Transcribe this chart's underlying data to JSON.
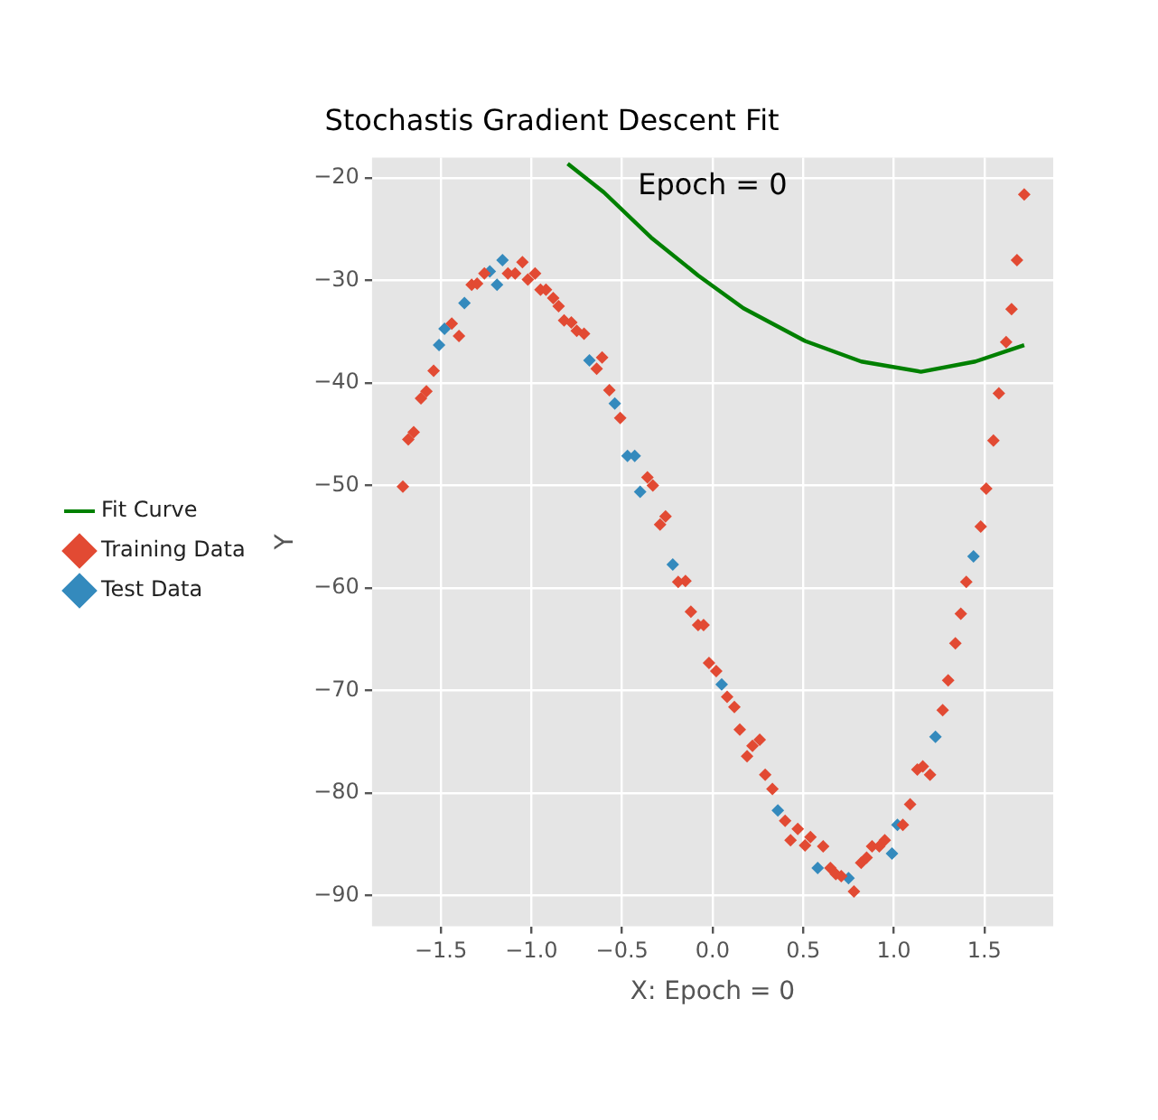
{
  "chart_data": {
    "type": "scatter",
    "title": "Stochastis Gradient Descent Fit",
    "xlabel": "X: Epoch = 0",
    "ylabel": "Y",
    "annotations": [
      "Epoch = 0"
    ],
    "xlim": [
      -1.88,
      1.88
    ],
    "ylim": [
      -93,
      -18
    ],
    "xticks": [
      {
        "value": -1.5,
        "label": "−1.5"
      },
      {
        "value": -1,
        "label": "−1.0"
      },
      {
        "value": -0.5,
        "label": "−0.5"
      },
      {
        "value": 0,
        "label": "0.0"
      },
      {
        "value": 0.5,
        "label": "0.5"
      },
      {
        "value": 1,
        "label": "1.0"
      },
      {
        "value": 1.5,
        "label": "1.5"
      }
    ],
    "yticks": [
      {
        "value": -90,
        "label": "−90"
      },
      {
        "value": -80,
        "label": "−80"
      },
      {
        "value": -70,
        "label": "−70"
      },
      {
        "value": -60,
        "label": "−60"
      },
      {
        "value": -50,
        "label": "−50"
      },
      {
        "value": -40,
        "label": "−40"
      },
      {
        "value": -30,
        "label": "−30"
      },
      {
        "value": -20,
        "label": "−20"
      }
    ],
    "grid": true,
    "legend": "left",
    "marker": "diamond",
    "series": [
      {
        "name": "Fit Curve",
        "type": "line",
        "color": "#008000",
        "marker": "none",
        "x": [
          -0.8,
          -0.6,
          -0.34,
          -0.08,
          0.17,
          0.51,
          0.82,
          1.15,
          1.45,
          1.72
        ],
        "values": [
          -18.6,
          -21.4,
          -25.8,
          -29.5,
          -32.7,
          -35.9,
          -37.9,
          -38.9,
          -37.9,
          -36.3
        ]
      },
      {
        "name": "Training Data",
        "color": "#e24a33",
        "x": [
          -1.71,
          -1.68,
          -1.65,
          -1.61,
          -1.58,
          -1.54,
          -1.44,
          -1.4,
          -1.33,
          -1.3,
          -1.26,
          -1.13,
          -1.09,
          -1.05,
          -1.02,
          -0.98,
          -0.95,
          -0.92,
          -0.88,
          -0.85,
          -0.82,
          -0.78,
          -0.75,
          -0.71,
          -0.64,
          -0.61,
          -0.57,
          -0.51,
          -0.36,
          -0.33,
          -0.29,
          -0.26,
          -0.19,
          -0.15,
          -0.12,
          -0.08,
          -0.05,
          -0.02,
          0.02,
          0.08,
          0.12,
          0.15,
          0.19,
          0.22,
          0.26,
          0.29,
          0.33,
          0.4,
          0.43,
          0.47,
          0.51,
          0.54,
          0.61,
          0.65,
          0.68,
          0.71,
          0.78,
          0.82,
          0.85,
          0.88,
          0.92,
          0.95,
          1.05,
          1.09,
          1.13,
          1.16,
          1.2,
          1.27,
          1.3,
          1.34,
          1.37,
          1.4,
          1.48,
          1.51,
          1.55,
          1.58,
          1.62,
          1.65,
          1.68,
          1.72
        ],
        "values": [
          -50.1,
          -45.5,
          -44.8,
          -41.5,
          -40.8,
          -38.8,
          -34.2,
          -35.4,
          -30.4,
          -30.3,
          -29.3,
          -29.3,
          -29.3,
          -28.2,
          -29.9,
          -29.3,
          -30.9,
          -30.9,
          -31.7,
          -32.5,
          -33.9,
          -34.1,
          -34.9,
          -35.2,
          -38.6,
          -37.5,
          -40.7,
          -43.4,
          -49.2,
          -50,
          -53.8,
          -53,
          -59.4,
          -59.3,
          -62.3,
          -63.6,
          -63.6,
          -67.3,
          -68.1,
          -70.6,
          -71.6,
          -73.8,
          -76.4,
          -75.4,
          -74.8,
          -78.2,
          -79.6,
          -82.7,
          -84.6,
          -83.5,
          -85.1,
          -84.3,
          -85.2,
          -87.3,
          -87.9,
          -88.1,
          -89.6,
          -86.8,
          -86.3,
          -85.2,
          -85.2,
          -84.6,
          -83.1,
          -81.1,
          -77.7,
          -77.4,
          -78.2,
          -71.9,
          -69,
          -65.4,
          -62.5,
          -59.4,
          -54,
          -50.3,
          -45.6,
          -41,
          -36,
          -32.8,
          -28,
          -21.6
        ]
      },
      {
        "name": "Test Data",
        "color": "#348abd",
        "x": [
          -1.51,
          -1.48,
          -1.37,
          -1.23,
          -1.19,
          -1.16,
          -0.68,
          -0.54,
          -0.47,
          -0.43,
          -0.4,
          -0.22,
          0.05,
          0.36,
          0.58,
          0.75,
          0.99,
          1.02,
          1.23,
          1.44
        ],
        "values": [
          -36.3,
          -34.7,
          -32.2,
          -29.1,
          -30.4,
          -28,
          -37.8,
          -42,
          -47.1,
          -47.1,
          -50.6,
          -57.7,
          -69.4,
          -81.7,
          -87.3,
          -88.3,
          -85.9,
          -83.1,
          -74.5,
          -56.9
        ]
      }
    ]
  }
}
